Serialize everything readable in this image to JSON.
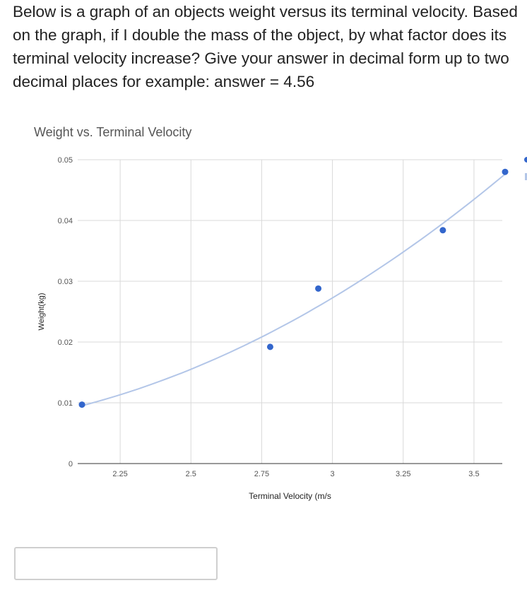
{
  "question": {
    "text": "Below is a graph of an objects weight versus its terminal velocity. Based on the graph, if I double the mass of the object, by what factor does its terminal velocity increase? Give your answer in decimal form up to two decimal places for example: answer =  4.56"
  },
  "chart_data": {
    "type": "scatter",
    "title": "Weight vs. Terminal Velocity",
    "xlabel": "Terminal Velocity (m/s",
    "ylabel": "Weight(kg)",
    "xlim": [
      2.1,
      3.6
    ],
    "ylim": [
      0,
      0.05
    ],
    "x_ticks": [
      2.25,
      2.5,
      2.75,
      3,
      3.25,
      3.5
    ],
    "x_tick_labels": [
      "2.25",
      "2.5",
      "2.75",
      "3",
      "3.25",
      "3.5"
    ],
    "y_ticks": [
      0,
      0.01,
      0.02,
      0.03,
      0.04,
      0.05
    ],
    "y_tick_labels": [
      "0",
      "0.01",
      "0.02",
      "0.03",
      "0.04",
      "0.05"
    ],
    "grid": true,
    "trendline": true,
    "series": [
      {
        "x": [
          2.115,
          2.78,
          2.95,
          3.39,
          3.61
        ],
        "y": [
          0.0097,
          0.0192,
          0.0288,
          0.0384,
          0.048
        ]
      }
    ],
    "colors": {
      "points": "#3366cc",
      "trendline": "#b3c6e8",
      "grid": "#d9d9d9",
      "axis": "#333333"
    }
  },
  "answer": {
    "value": ""
  }
}
